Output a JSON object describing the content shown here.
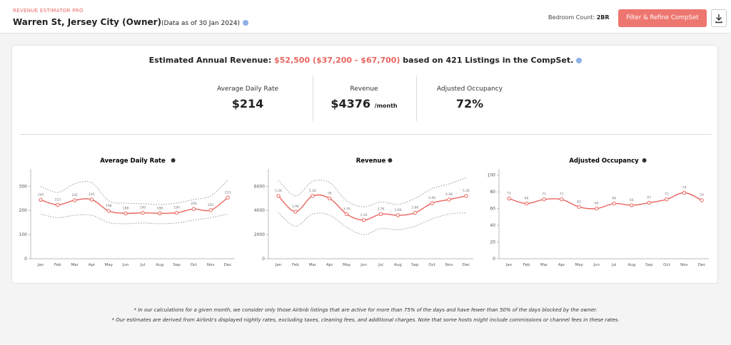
{
  "header": {
    "app_name": "REVENUE ESTIMATOR PRO",
    "title": "Warren St, Jersey City (Owner)",
    "subtitle": "(Data as of 30 Jan 2024)",
    "bedroom_label": "Bedroom Count:",
    "bedroom_value": "2BR",
    "button": "Filter & Refine CompSet"
  },
  "summary": {
    "prefix": "Estimated Annual Revenue:",
    "highlight": "$52,500 ($37,200 - $67,700)",
    "suffix": "based on 421 Listings in the CompSet.",
    "stats": [
      {
        "label": "Average Daily Rate",
        "value": "$214"
      },
      {
        "label": "Revenue",
        "value": "$4376",
        "unit": "/month"
      },
      {
        "label": "Adjusted Occupancy",
        "value": "72%"
      }
    ]
  },
  "charts": [
    {
      "type": "line",
      "title": "Average Daily Rate",
      "color": "#e8655f",
      "categories": [
        "Jan",
        "Feb",
        "Mar",
        "Apr",
        "May",
        "Jun",
        "Jul",
        "Aug",
        "Sep",
        "Oct",
        "Nov",
        "Dec"
      ],
      "values": [
        244,
        223,
        242,
        245,
        198,
        188,
        190,
        188,
        190,
        206,
        201,
        253
      ],
      "upper": [
        300,
        275,
        310,
        315,
        240,
        230,
        228,
        225,
        230,
        245,
        260,
        325
      ],
      "lower": [
        185,
        170,
        180,
        180,
        150,
        145,
        148,
        145,
        148,
        160,
        170,
        185
      ],
      "ylim": [
        0,
        360
      ],
      "yticks": [
        0,
        100,
        200,
        300
      ]
    },
    {
      "type": "line",
      "title": "Revenue",
      "color": "#e8655f",
      "categories": [
        "Jan",
        "Feb",
        "Mar",
        "Apr",
        "May",
        "Jun",
        "Jul",
        "Aug",
        "Sep",
        "Oct",
        "Nov",
        "Dec"
      ],
      "values": [
        5200,
        3900,
        5200,
        5000,
        3700,
        3200,
        3700,
        3600,
        3800,
        4600,
        4900,
        5200
      ],
      "value_labels": [
        "5.2K",
        "3.9K",
        "5.2K",
        "5K",
        "3.7K",
        "3.2K",
        "3.7K",
        "3.6K",
        "3.8K",
        "4.6K",
        "4.9K",
        "5.2K"
      ],
      "upper": [
        6500,
        5200,
        6400,
        6300,
        4800,
        4300,
        4700,
        4500,
        5000,
        5800,
        6200,
        6700
      ],
      "lower": [
        3800,
        2700,
        3700,
        3600,
        2600,
        2000,
        2500,
        2400,
        2700,
        3300,
        3700,
        3800
      ],
      "ylim": [
        0,
        7200
      ],
      "yticks": [
        0,
        2000,
        4000,
        6000
      ]
    },
    {
      "type": "line",
      "title": "Adjusted Occupancy",
      "color": "#e8655f",
      "categories": [
        "Jan",
        "Feb",
        "Mar",
        "Apr",
        "May",
        "Jun",
        "Jul",
        "Aug",
        "Sep",
        "Oct",
        "Nov",
        "Dec"
      ],
      "values": [
        72,
        66,
        71,
        71,
        62,
        60,
        66,
        64,
        67,
        71,
        79,
        70
      ],
      "ylim": [
        0,
        104
      ],
      "yticks": [
        0,
        20,
        40,
        60,
        80,
        100
      ]
    }
  ],
  "notes": [
    "* In our calculations for a given month, we consider only those Airbnb listings that are active for more than 75% of the days and have fewer than 50% of the days blocked by the owner.",
    "* Our estimates are derived from Airbnb's displayed nightly rates, excluding taxes, cleaning fees, and additional charges. Note that some hosts might include commissions or channel fees in these rates."
  ]
}
